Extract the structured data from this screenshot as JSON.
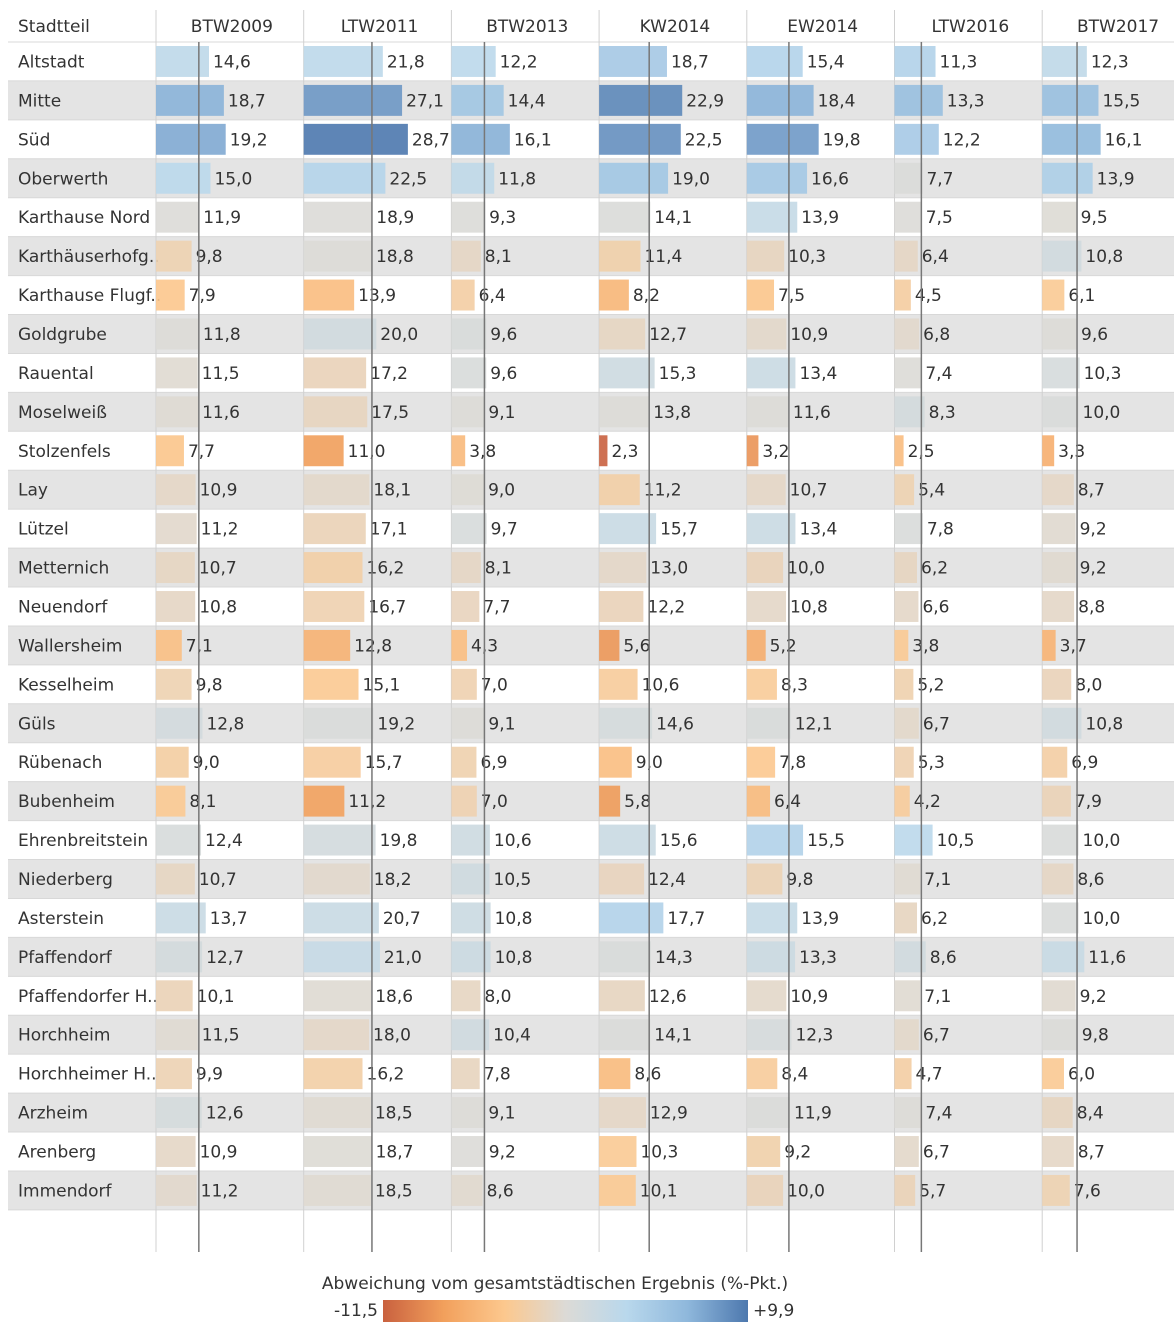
{
  "chart_data": {
    "type": "bar_table",
    "row_header": "Stadtteil",
    "categories": [
      "Altstadt",
      "Mitte",
      "Süd",
      "Oberwerth",
      "Karthause Nord",
      "Karthäuserhofg..",
      "Karthause Flugf..",
      "Goldgrube",
      "Rauental",
      "Moselweiß",
      "Stolzenfels",
      "Lay",
      "Lützel",
      "Metternich",
      "Neuendorf",
      "Wallersheim",
      "Kesselheim",
      "Güls",
      "Rübenach",
      "Bubenheim",
      "Ehrenbreitstein",
      "Niederberg",
      "Asterstein",
      "Pfaffendorf",
      "Pfaffendorfer H..",
      "Horchheim",
      "Horchheimer H..",
      "Arzheim",
      "Arenberg",
      "Immendorf"
    ],
    "xlim": [
      0,
      40
    ],
    "series": [
      {
        "name": "BTW2009",
        "reference": 11.8,
        "values": [
          14.6,
          18.7,
          19.2,
          15.0,
          11.9,
          9.8,
          7.9,
          11.8,
          11.5,
          11.6,
          7.7,
          10.9,
          11.2,
          10.7,
          10.8,
          7.1,
          9.8,
          12.8,
          9.0,
          8.1,
          12.4,
          10.7,
          13.7,
          12.7,
          10.1,
          11.5,
          9.9,
          12.6,
          10.9,
          11.2
        ],
        "value_labels": [
          "14,6",
          "18,7",
          "19,2",
          "15,0",
          "11,9",
          "9,8",
          "7,9",
          "11,8",
          "11,5",
          "11,6",
          "7,7",
          "10,9",
          "11,2",
          "10,7",
          "10,8",
          "7,1",
          "9,8",
          "12,8",
          "9,0",
          "8,1",
          "12,4",
          "10,7",
          "13,7",
          "12,7",
          "10,1",
          "11,5",
          "9,9",
          "12,6",
          "10,9",
          "11,2"
        ]
      },
      {
        "name": "LTW2011",
        "reference": 18.8,
        "values": [
          21.8,
          27.1,
          28.7,
          22.5,
          18.9,
          18.8,
          13.9,
          20.0,
          17.2,
          17.5,
          11.0,
          18.1,
          17.1,
          16.2,
          16.7,
          12.8,
          15.1,
          19.2,
          15.7,
          11.2,
          19.8,
          18.2,
          20.7,
          21.0,
          18.6,
          18.0,
          16.2,
          18.5,
          18.7,
          18.5
        ],
        "value_labels": [
          "21,8",
          "27,1",
          "28,7",
          "22,5",
          "18,9",
          "18,8",
          "13,9",
          "20,0",
          "17,2",
          "17,5",
          "11,0",
          "18,1",
          "17,1",
          "16,2",
          "16,7",
          "12,8",
          "15,1",
          "19,2",
          "15,7",
          "11,2",
          "19,8",
          "18,2",
          "20,7",
          "21,0",
          "18,6",
          "18,0",
          "16,2",
          "18,5",
          "18,7",
          "18,5"
        ]
      },
      {
        "name": "BTW2013",
        "reference": 9.1,
        "values": [
          12.2,
          14.4,
          16.1,
          11.8,
          9.3,
          8.1,
          6.4,
          9.6,
          9.6,
          9.1,
          3.8,
          9.0,
          9.7,
          8.1,
          7.7,
          4.3,
          7.0,
          9.1,
          6.9,
          7.0,
          10.6,
          10.5,
          10.8,
          10.8,
          8.0,
          10.4,
          7.8,
          9.1,
          9.2,
          8.6
        ],
        "value_labels": [
          "12,2",
          "14,4",
          "16,1",
          "11,8",
          "9,3",
          "8,1",
          "6,4",
          "9,6",
          "9,6",
          "9,1",
          "3,8",
          "9,0",
          "9,7",
          "8,1",
          "7,7",
          "4,3",
          "7,0",
          "9,1",
          "6,9",
          "7,0",
          "10,6",
          "10,5",
          "10,8",
          "10,8",
          "8,0",
          "10,4",
          "7,8",
          "9,1",
          "9,2",
          "8,6"
        ]
      },
      {
        "name": "KW2014",
        "reference": 13.8,
        "values": [
          18.7,
          22.9,
          22.5,
          19.0,
          14.1,
          11.4,
          8.2,
          12.7,
          15.3,
          13.8,
          2.3,
          11.2,
          15.7,
          13.0,
          12.2,
          5.6,
          10.6,
          14.6,
          9.0,
          5.8,
          15.6,
          12.4,
          17.7,
          14.3,
          12.6,
          14.1,
          8.6,
          12.9,
          10.3,
          10.1
        ],
        "value_labels": [
          "18,7",
          "22,9",
          "22,5",
          "19,0",
          "14,1",
          "11,4",
          "8,2",
          "12,7",
          "15,3",
          "13,8",
          "2,3",
          "11,2",
          "15,7",
          "13,0",
          "12,2",
          "5,6",
          "10,6",
          "14,6",
          "9,0",
          "5,8",
          "15,6",
          "12,4",
          "17,7",
          "14,3",
          "12,6",
          "14,1",
          "8,6",
          "12,9",
          "10,3",
          "10,1"
        ]
      },
      {
        "name": "EW2014",
        "reference": 11.6,
        "values": [
          15.4,
          18.4,
          19.8,
          16.6,
          13.9,
          10.3,
          7.5,
          10.9,
          13.4,
          11.6,
          3.2,
          10.7,
          13.4,
          10.0,
          10.8,
          5.2,
          8.3,
          12.1,
          7.8,
          6.4,
          15.5,
          9.8,
          13.9,
          13.3,
          10.9,
          12.3,
          8.4,
          11.9,
          9.2,
          10.0
        ],
        "value_labels": [
          "15,4",
          "18,4",
          "19,8",
          "16,6",
          "13,9",
          "10,3",
          "7,5",
          "10,9",
          "13,4",
          "11,6",
          "3,2",
          "10,7",
          "13,4",
          "10,0",
          "10,8",
          "5,2",
          "8,3",
          "12,1",
          "7,8",
          "6,4",
          "15,5",
          "9,8",
          "13,9",
          "13,3",
          "10,9",
          "12,3",
          "8,4",
          "11,9",
          "9,2",
          "10,0"
        ]
      },
      {
        "name": "LTW2016",
        "reference": 7.4,
        "values": [
          11.3,
          13.3,
          12.2,
          7.7,
          7.5,
          6.4,
          4.5,
          6.8,
          7.4,
          8.3,
          2.5,
          5.4,
          7.8,
          6.2,
          6.6,
          3.8,
          5.2,
          6.7,
          5.3,
          4.2,
          10.5,
          7.1,
          6.2,
          8.6,
          7.1,
          6.7,
          4.7,
          7.4,
          6.7,
          5.7
        ],
        "value_labels": [
          "11,3",
          "13,3",
          "12,2",
          "7,7",
          "7,5",
          "6,4",
          "4,5",
          "6,8",
          "7,4",
          "8,3",
          "2,5",
          "5,4",
          "7,8",
          "6,2",
          "6,6",
          "3,8",
          "5,2",
          "6,7",
          "5,3",
          "4,2",
          "10,5",
          "7,1",
          "6,2",
          "8,6",
          "7,1",
          "6,7",
          "4,7",
          "7,4",
          "6,7",
          "5,7"
        ]
      },
      {
        "name": "BTW2017",
        "reference": 9.6,
        "values": [
          12.3,
          15.5,
          16.1,
          13.9,
          9.5,
          10.8,
          6.1,
          9.6,
          10.3,
          10.0,
          3.3,
          8.7,
          9.2,
          9.2,
          8.8,
          3.7,
          8.0,
          10.8,
          6.9,
          7.9,
          10.0,
          8.6,
          10.0,
          11.6,
          9.2,
          9.8,
          6.0,
          8.4,
          8.7,
          7.6
        ],
        "value_labels": [
          "12,3",
          "15,5",
          "16,1",
          "13,9",
          "9,5",
          "10,8",
          "6,1",
          "9,6",
          "10,3",
          "10,0",
          "3,3",
          "8,7",
          "9,2",
          "9,2",
          "8,8",
          "3,7",
          "8,0",
          "10,8",
          "6,9",
          "7,9",
          "10,0",
          "8,6",
          "10,0",
          "11,6",
          "9,2",
          "9,8",
          "6,0",
          "8,4",
          "8,7",
          "7,6"
        ]
      }
    ],
    "colorscale": {
      "title": "Abweichung vom gesamtstädtischen Ergebnis (%-Pkt.)",
      "min": -11.5,
      "max": 9.9,
      "min_label": "-11,5",
      "max_label": "+9,9",
      "colors": [
        "#c9613f",
        "#f2a05c",
        "#fcc88e",
        "#dcdad6",
        "#b9d8ec",
        "#8fb8dc",
        "#4d78ae"
      ]
    }
  }
}
